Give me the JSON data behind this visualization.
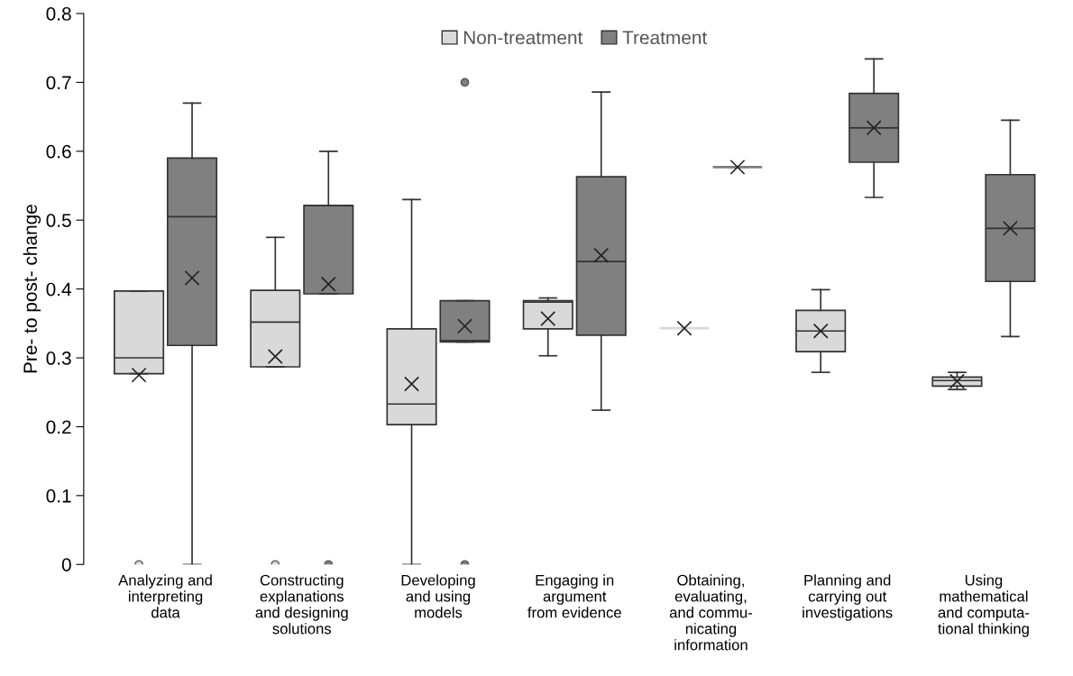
{
  "chart_data": {
    "type": "box",
    "ylabel": "Pre- to post- change",
    "categories": [
      "Analyzing and\ninterpreting\ndata",
      "Constructing\nexplanations\nand designing\nsolutions",
      "Developing\nand using\nmodels",
      "Engaging in\nargument\nfrom evidence",
      "Obtaining,\nevaluating,\nand commu-\nnicating\ninformation",
      "Planning and\ncarrying out\ninvestigations",
      "Using\nmathematical\nand computa-\ntional thinking"
    ],
    "ylim": [
      0,
      0.8
    ],
    "yticks": [
      0,
      0.1,
      0.2,
      0.3,
      0.4,
      0.5,
      0.6,
      0.7,
      0.8
    ],
    "legend": "top",
    "grid": false,
    "series": [
      {
        "name": "Non-treatment",
        "color": "#d9d9d9",
        "boxes": [
          {
            "low": 0.277,
            "q1": 0.277,
            "median": 0.3,
            "q3": 0.397,
            "high": 0.397,
            "mean": 0.275,
            "outliers": [
              0
            ]
          },
          {
            "low": 0.287,
            "q1": 0.287,
            "median": 0.352,
            "q3": 0.398,
            "high": 0.475,
            "mean": 0.302,
            "outliers": [
              0
            ]
          },
          {
            "low": 0,
            "q1": 0.203,
            "median": 0.233,
            "q3": 0.342,
            "high": 0.53,
            "mean": 0.262
          },
          {
            "low": 0.303,
            "q1": 0.342,
            "median": 0.381,
            "q3": 0.383,
            "high": 0.387,
            "mean": 0.357
          },
          {
            "low": 0.343,
            "q1": 0.343,
            "median": 0.343,
            "q3": 0.343,
            "high": 0.343,
            "mean": 0.343
          },
          {
            "low": 0.279,
            "q1": 0.309,
            "median": 0.339,
            "q3": 0.369,
            "high": 0.399,
            "mean": 0.339
          },
          {
            "low": 0.254,
            "q1": 0.259,
            "median": 0.267,
            "q3": 0.272,
            "high": 0.279,
            "mean": 0.266
          }
        ]
      },
      {
        "name": "Treatment",
        "color": "#808080",
        "boxes": [
          {
            "low": 0,
            "q1": 0.318,
            "median": 0.505,
            "q3": 0.59,
            "high": 0.67,
            "mean": 0.416
          },
          {
            "low": 0.393,
            "q1": 0.393,
            "median": 0.521,
            "q3": 0.521,
            "high": 0.6,
            "mean": 0.407,
            "outliers": [
              0
            ]
          },
          {
            "low": 0.323,
            "q1": 0.323,
            "median": 0.325,
            "q3": 0.383,
            "high": 0.383,
            "mean": 0.346,
            "outliers": [
              0.7,
              0
            ]
          },
          {
            "low": 0.224,
            "q1": 0.333,
            "median": 0.44,
            "q3": 0.563,
            "high": 0.686,
            "mean": 0.449
          },
          {
            "low": 0.577,
            "q1": 0.577,
            "median": 0.577,
            "q3": 0.577,
            "high": 0.577,
            "mean": 0.577
          },
          {
            "low": 0.533,
            "q1": 0.584,
            "median": 0.634,
            "q3": 0.684,
            "high": 0.734,
            "mean": 0.634
          },
          {
            "low": 0.331,
            "q1": 0.411,
            "median": 0.488,
            "q3": 0.566,
            "high": 0.645,
            "mean": 0.488
          }
        ]
      }
    ]
  }
}
